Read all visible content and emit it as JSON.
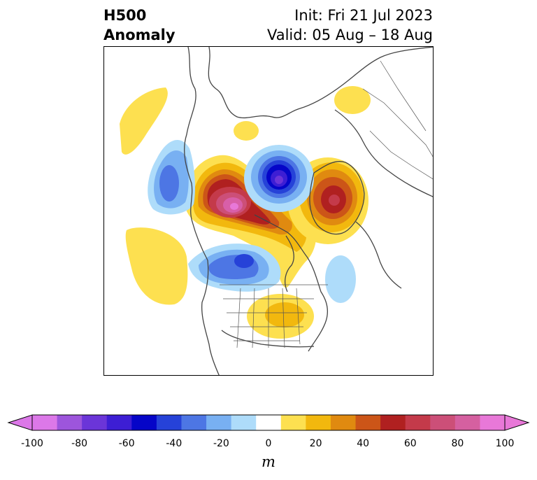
{
  "header": {
    "title_line1": "H500",
    "title_line2": "Anomaly",
    "init_label": "Init: Fri 21 Jul 2023",
    "valid_label": "Valid: 05 Aug – 18 Aug"
  },
  "colorbar": {
    "unit": "m",
    "ticks": [
      "-100",
      "-80",
      "-60",
      "-40",
      "-20",
      "0",
      "20",
      "40",
      "60",
      "80",
      "100"
    ],
    "levels": [
      -100,
      -90,
      -80,
      -70,
      -60,
      -50,
      -40,
      -30,
      -20,
      -10,
      10,
      20,
      30,
      40,
      50,
      60,
      70,
      80,
      90,
      100
    ],
    "colors": [
      "#dc78e8",
      "#9d55dc",
      "#6b35d8",
      "#3d1ed4",
      "#0505c8",
      "#2642d8",
      "#4d76e4",
      "#78b0f2",
      "#aedcfa",
      "#ffffff",
      "#fde050",
      "#f2b80e",
      "#e08a10",
      "#cc5518",
      "#b02020",
      "#c43a4a",
      "#cc4f78",
      "#d560a0",
      "#e878d8"
    ],
    "under_color": "#dc78e8",
    "over_color": "#e878d8"
  },
  "legend_colors": {
    "positive_strong": "#d85fa8",
    "negative_strong": "#3d1ed4",
    "coastline": "#444444"
  }
}
